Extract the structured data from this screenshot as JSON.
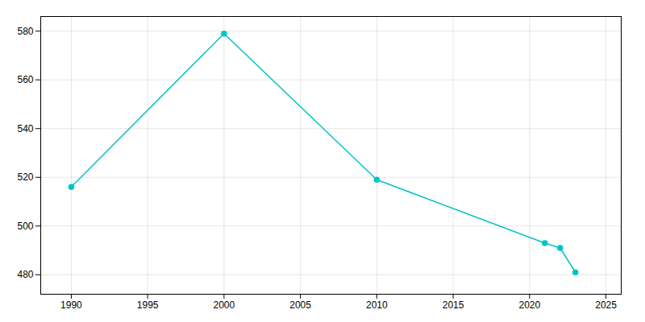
{
  "chart_data": {
    "type": "line",
    "x": [
      1990,
      2000,
      2010,
      2021,
      2022,
      2023
    ],
    "values": [
      516,
      579,
      519,
      493,
      491,
      481
    ],
    "color": "#00C5C5",
    "marker": "circle",
    "xlim": [
      1988,
      2026
    ],
    "xticks": [
      1990,
      1995,
      2000,
      2005,
      2010,
      2015,
      2020,
      2025
    ],
    "ylim": [
      472,
      586
    ],
    "yticks": [
      480,
      500,
      520,
      540,
      560,
      580
    ],
    "grid": true
  }
}
